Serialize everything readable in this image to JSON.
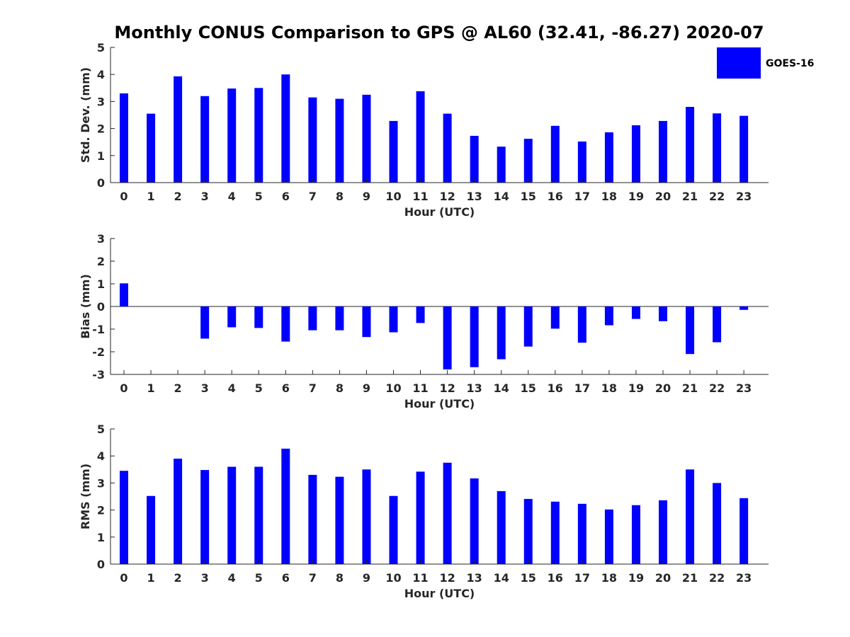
{
  "title": "Monthly CONUS Comparison to GPS @ AL60 (32.41, -86.27) 2020-07",
  "colors": {
    "bar": "#0000ff",
    "axis": "#262626",
    "background": "#ffffff"
  },
  "legend": {
    "label": "GOES-16",
    "position": "top-right"
  },
  "chart_data": [
    {
      "type": "bar",
      "name": "std_dev",
      "xlabel": "Hour (UTC)",
      "ylabel": "Std. Dev. (mm)",
      "ylim": [
        0,
        5
      ],
      "yticks": [
        0,
        1,
        2,
        3,
        4,
        5
      ],
      "categories": [
        "0",
        "1",
        "2",
        "3",
        "4",
        "5",
        "6",
        "7",
        "8",
        "9",
        "10",
        "11",
        "12",
        "13",
        "14",
        "15",
        "16",
        "17",
        "18",
        "19",
        "20",
        "21",
        "22",
        "23"
      ],
      "series": [
        {
          "name": "GOES-16",
          "values": [
            3.3,
            2.55,
            3.93,
            3.2,
            3.48,
            3.5,
            4.0,
            3.15,
            3.1,
            3.25,
            2.28,
            3.38,
            2.55,
            1.73,
            1.33,
            1.62,
            2.1,
            1.52,
            1.86,
            2.12,
            2.28,
            2.8,
            2.56,
            2.47
          ]
        }
      ],
      "grid": false
    },
    {
      "type": "bar",
      "name": "bias",
      "xlabel": "Hour (UTC)",
      "ylabel": "Bias (mm)",
      "ylim": [
        -3,
        3
      ],
      "yticks": [
        -3,
        -2,
        -1,
        0,
        1,
        2,
        3
      ],
      "categories": [
        "0",
        "1",
        "2",
        "3",
        "4",
        "5",
        "6",
        "7",
        "8",
        "9",
        "10",
        "11",
        "12",
        "13",
        "14",
        "15",
        "16",
        "17",
        "18",
        "19",
        "20",
        "21",
        "22",
        "23"
      ],
      "series": [
        {
          "name": "GOES-16",
          "values": [
            1.02,
            0,
            0,
            -1.42,
            -0.92,
            -0.95,
            -1.55,
            -1.05,
            -1.05,
            -1.35,
            -1.14,
            -0.73,
            -2.78,
            -2.68,
            -2.33,
            -1.77,
            -0.98,
            -1.6,
            -0.83,
            -0.55,
            -0.65,
            -2.1,
            -1.58,
            -0.15
          ]
        }
      ],
      "grid": false
    },
    {
      "type": "bar",
      "name": "rms",
      "xlabel": "Hour (UTC)",
      "ylabel": "RMS (mm)",
      "ylim": [
        0,
        5
      ],
      "yticks": [
        0,
        1,
        2,
        3,
        4,
        5
      ],
      "categories": [
        "0",
        "1",
        "2",
        "3",
        "4",
        "5",
        "6",
        "7",
        "8",
        "9",
        "10",
        "11",
        "12",
        "13",
        "14",
        "15",
        "16",
        "17",
        "18",
        "19",
        "20",
        "21",
        "22",
        "23"
      ],
      "series": [
        {
          "name": "GOES-16",
          "values": [
            3.45,
            2.52,
            3.9,
            3.48,
            3.6,
            3.6,
            4.27,
            3.3,
            3.23,
            3.5,
            2.52,
            3.42,
            3.75,
            3.17,
            2.7,
            2.41,
            2.31,
            2.23,
            2.02,
            2.18,
            2.36,
            3.5,
            3.0,
            2.44
          ]
        }
      ],
      "grid": false
    }
  ]
}
